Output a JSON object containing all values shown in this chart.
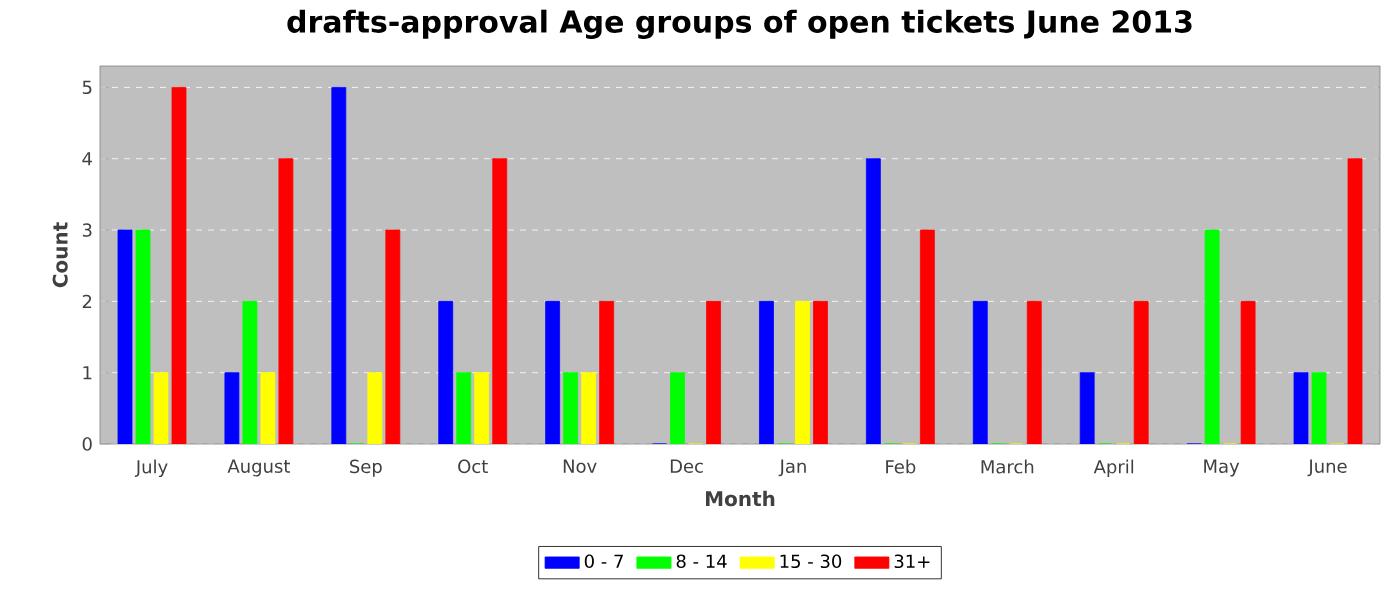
{
  "chart_data": {
    "type": "bar",
    "title": "drafts-approval Age groups of open tickets June 2013",
    "xlabel": "Month",
    "ylabel": "Count",
    "categories": [
      "July",
      "August",
      "Sep",
      "Oct",
      "Nov",
      "Dec",
      "Jan",
      "Feb",
      "March",
      "April",
      "May",
      "June"
    ],
    "series": [
      {
        "name": "0 - 7",
        "color": "#0000ff",
        "values": [
          3,
          1,
          5,
          2,
          2,
          0,
          2,
          4,
          2,
          1,
          0,
          1
        ]
      },
      {
        "name": "8 - 14",
        "color": "#00ff00",
        "values": [
          3,
          2,
          0,
          1,
          1,
          1,
          0,
          0,
          0,
          0,
          3,
          1
        ]
      },
      {
        "name": "15 - 30",
        "color": "#ffff00",
        "values": [
          1,
          1,
          1,
          1,
          1,
          0,
          2,
          0,
          0,
          0,
          0,
          0
        ]
      },
      {
        "name": "31+",
        "color": "#ff0000",
        "values": [
          5,
          4,
          3,
          4,
          2,
          2,
          2,
          3,
          2,
          2,
          2,
          4
        ]
      }
    ],
    "ylim": [
      0,
      5.3
    ],
    "yticks": [
      0,
      1,
      2,
      3,
      4,
      5
    ],
    "grid": "y",
    "legend": "bottom"
  }
}
